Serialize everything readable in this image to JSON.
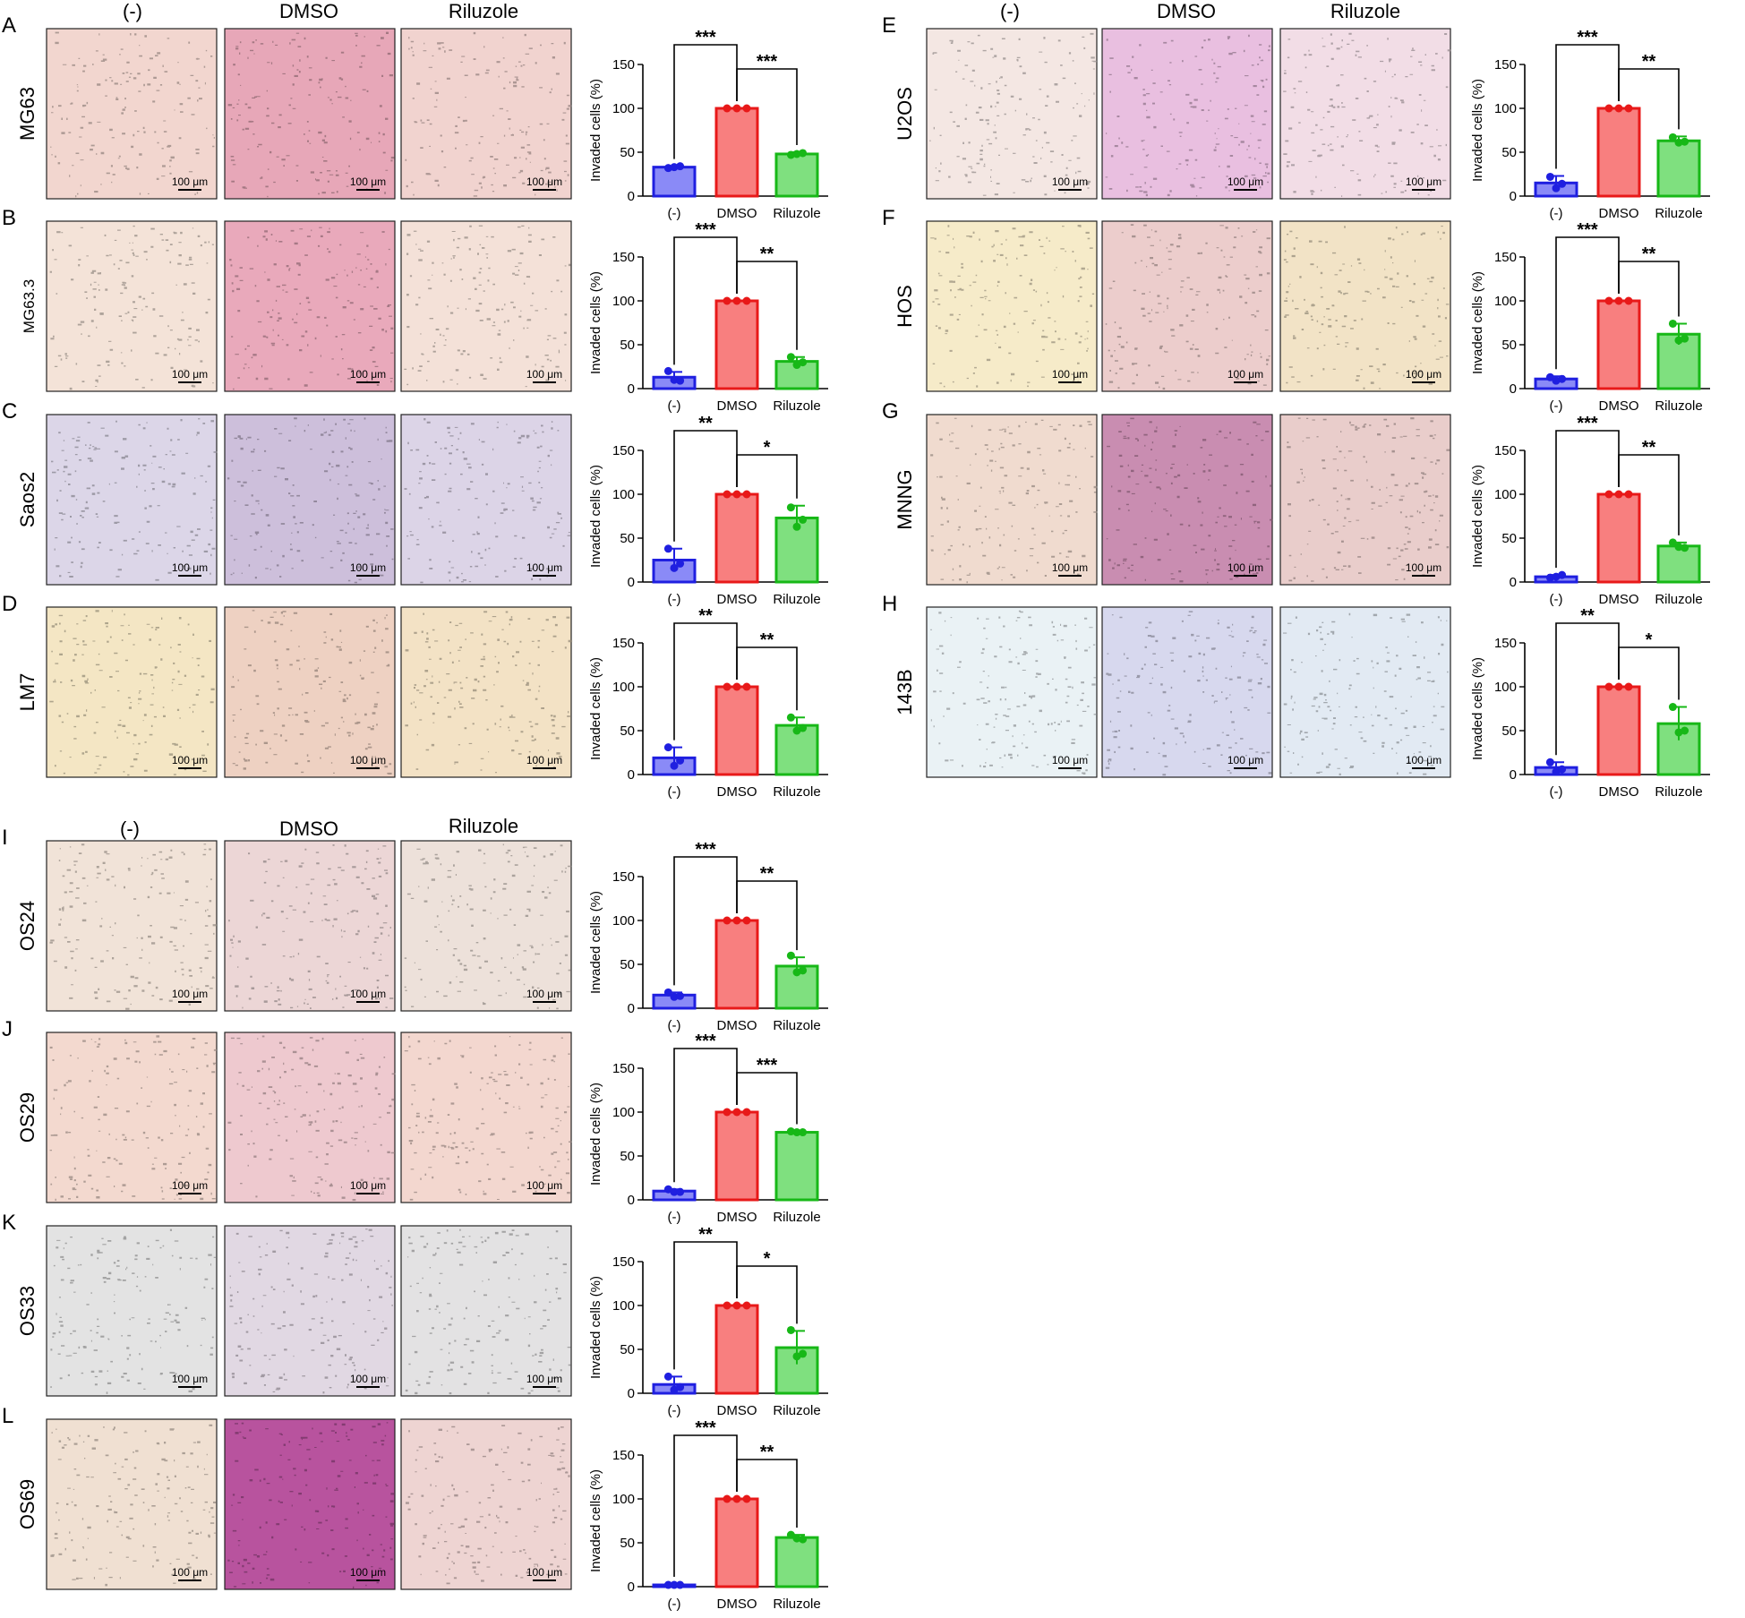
{
  "colors": {
    "neg_fill": "#8a8af7",
    "neg_stroke": "#1f1fe0",
    "dmso_fill": "#f87f7f",
    "dmso_stroke": "#e81919",
    "ril_fill": "#7fe07f",
    "ril_stroke": "#17b817",
    "axis": "#000000"
  },
  "column_headers": {
    "neg": "(-)",
    "dmso": "DMSO",
    "riluzole": "Riluzole"
  },
  "scale_bar_label": "100 μm",
  "micrograph_tints": {
    "A": [
      "#f2d6cf",
      "#e7a7b8",
      "#f1d3cf"
    ],
    "B": [
      "#f4e3d8",
      "#e9a9bb",
      "#f4e1d8"
    ],
    "C": [
      "#dcd6e8",
      "#cdbfdb",
      "#dcd4e7"
    ],
    "D": [
      "#f4e6c4",
      "#eed1c2",
      "#f3e2c5"
    ],
    "E": [
      "#f4e7e3",
      "#e9bfe0",
      "#f2dde6"
    ],
    "F": [
      "#f6ebc9",
      "#eccdcc",
      "#f2e3c6"
    ],
    "G": [
      "#f0dbcf",
      "#c98db1",
      "#e9cdcb"
    ],
    "H": [
      "#eaf2f5",
      "#d7d8ee",
      "#e2eaf3"
    ],
    "I": [
      "#f1e3d8",
      "#ecd6d6",
      "#ede1da"
    ],
    "J": [
      "#f3d9cf",
      "#eec9cf",
      "#f3d7cf"
    ],
    "K": [
      "#e3e3e3",
      "#e1d8e3",
      "#e3e2e3"
    ],
    "L": [
      "#f0e0d2",
      "#b8539e",
      "#eed4d2"
    ]
  },
  "chart_data": [
    {
      "panel": "A",
      "cell_line": "MG63",
      "type": "bar",
      "categories": [
        "(-)",
        "DMSO",
        "Riluzole"
      ],
      "ylabel": "Invaded cells (%)",
      "ylim": [
        0,
        150
      ],
      "yticks": [
        0,
        50,
        100,
        150
      ],
      "values": [
        33,
        100,
        48
      ],
      "errors": [
        1,
        0,
        2
      ],
      "points": [
        [
          32,
          33,
          34
        ],
        [
          100,
          100,
          100
        ],
        [
          47,
          48,
          49
        ]
      ],
      "significance": [
        {
          "pair": "(-)-DMSO",
          "label": "***"
        },
        {
          "pair": "DMSO-Riluzole",
          "label": "***"
        }
      ]
    },
    {
      "panel": "B",
      "cell_line": "MG63.3",
      "type": "bar",
      "categories": [
        "(-)",
        "DMSO",
        "Riluzole"
      ],
      "ylabel": "Invaded cells (%)",
      "ylim": [
        0,
        150
      ],
      "yticks": [
        0,
        50,
        100,
        150
      ],
      "values": [
        13,
        100,
        31
      ],
      "errors": [
        6,
        0,
        5
      ],
      "points": [
        [
          20,
          10,
          9
        ],
        [
          100,
          100,
          100
        ],
        [
          36,
          27,
          30
        ]
      ],
      "significance": [
        {
          "pair": "(-)-DMSO",
          "label": "***"
        },
        {
          "pair": "DMSO-Riluzole",
          "label": "**"
        }
      ]
    },
    {
      "panel": "C",
      "cell_line": "Saos2",
      "type": "bar",
      "categories": [
        "(-)",
        "DMSO",
        "Riluzole"
      ],
      "ylabel": "Invaded cells (%)",
      "ylim": [
        0,
        150
      ],
      "yticks": [
        0,
        50,
        100,
        150
      ],
      "values": [
        25,
        100,
        73
      ],
      "errors": [
        13,
        0,
        14
      ],
      "points": [
        [
          38,
          16,
          21
        ],
        [
          100,
          100,
          100
        ],
        [
          85,
          63,
          71
        ]
      ],
      "significance": [
        {
          "pair": "(-)-DMSO",
          "label": "**"
        },
        {
          "pair": "DMSO-Riluzole",
          "label": "*"
        }
      ]
    },
    {
      "panel": "D",
      "cell_line": "LM7",
      "type": "bar",
      "categories": [
        "(-)",
        "DMSO",
        "Riluzole"
      ],
      "ylabel": "Invaded cells (%)",
      "ylim": [
        0,
        150
      ],
      "yticks": [
        0,
        50,
        100,
        150
      ],
      "values": [
        19,
        100,
        56
      ],
      "errors": [
        12,
        0,
        9
      ],
      "points": [
        [
          31,
          10,
          16
        ],
        [
          100,
          100,
          100
        ],
        [
          65,
          50,
          53
        ]
      ],
      "significance": [
        {
          "pair": "(-)-DMSO",
          "label": "**"
        },
        {
          "pair": "DMSO-Riluzole",
          "label": "**"
        }
      ]
    },
    {
      "panel": "E",
      "cell_line": "U2OS",
      "type": "bar",
      "categories": [
        "(-)",
        "DMSO",
        "Riluzole"
      ],
      "ylabel": "Invaded cells (%)",
      "ylim": [
        0,
        150
      ],
      "yticks": [
        0,
        50,
        100,
        150
      ],
      "values": [
        15,
        100,
        63
      ],
      "errors": [
        8,
        0,
        5
      ],
      "points": [
        [
          22,
          9,
          14
        ],
        [
          100,
          100,
          100
        ],
        [
          67,
          61,
          62
        ]
      ],
      "significance": [
        {
          "pair": "(-)-DMSO",
          "label": "***"
        },
        {
          "pair": "DMSO-Riluzole",
          "label": "**"
        }
      ]
    },
    {
      "panel": "F",
      "cell_line": "HOS",
      "type": "bar",
      "categories": [
        "(-)",
        "DMSO",
        "Riluzole"
      ],
      "ylabel": "Invaded cells (%)",
      "ylim": [
        0,
        150
      ],
      "yticks": [
        0,
        50,
        100,
        150
      ],
      "values": [
        11,
        100,
        62
      ],
      "errors": [
        3,
        0,
        12
      ],
      "points": [
        [
          13,
          9,
          11
        ],
        [
          100,
          100,
          100
        ],
        [
          74,
          55,
          57
        ]
      ],
      "significance": [
        {
          "pair": "(-)-DMSO",
          "label": "***"
        },
        {
          "pair": "DMSO-Riluzole",
          "label": "**"
        }
      ]
    },
    {
      "panel": "G",
      "cell_line": "MNNG",
      "type": "bar",
      "categories": [
        "(-)",
        "DMSO",
        "Riluzole"
      ],
      "ylabel": "Invaded cells (%)",
      "ylim": [
        0,
        150
      ],
      "yticks": [
        0,
        50,
        100,
        150
      ],
      "values": [
        6,
        100,
        41
      ],
      "errors": [
        2,
        0,
        4
      ],
      "points": [
        [
          5,
          6,
          8
        ],
        [
          100,
          100,
          100
        ],
        [
          45,
          40,
          39
        ]
      ],
      "significance": [
        {
          "pair": "(-)-DMSO",
          "label": "***"
        },
        {
          "pair": "DMSO-Riluzole",
          "label": "**"
        }
      ]
    },
    {
      "panel": "H",
      "cell_line": "143B",
      "type": "bar",
      "categories": [
        "(-)",
        "DMSO",
        "Riluzole"
      ],
      "ylabel": "Invaded cells (%)",
      "ylim": [
        0,
        150
      ],
      "yticks": [
        0,
        50,
        100,
        150
      ],
      "values": [
        8,
        100,
        58
      ],
      "errors": [
        6,
        0,
        19
      ],
      "points": [
        [
          14,
          3,
          6
        ],
        [
          100,
          100,
          100
        ],
        [
          77,
          48,
          50
        ]
      ],
      "significance": [
        {
          "pair": "(-)-DMSO",
          "label": "**"
        },
        {
          "pair": "DMSO-Riluzole",
          "label": "*"
        }
      ]
    },
    {
      "panel": "I",
      "cell_line": "OS24",
      "type": "bar",
      "categories": [
        "(-)",
        "DMSO",
        "Riluzole"
      ],
      "ylabel": "Invaded cells (%)",
      "ylim": [
        0,
        150
      ],
      "yticks": [
        0,
        50,
        100,
        150
      ],
      "values": [
        15,
        100,
        48
      ],
      "errors": [
        3,
        0,
        10
      ],
      "points": [
        [
          18,
          13,
          14
        ],
        [
          100,
          100,
          100
        ],
        [
          60,
          41,
          43
        ]
      ],
      "significance": [
        {
          "pair": "(-)-DMSO",
          "label": "***"
        },
        {
          "pair": "DMSO-Riluzole",
          "label": "**"
        }
      ]
    },
    {
      "panel": "J",
      "cell_line": "OS29",
      "type": "bar",
      "categories": [
        "(-)",
        "DMSO",
        "Riluzole"
      ],
      "ylabel": "Invaded cells (%)",
      "ylim": [
        0,
        150
      ],
      "yticks": [
        0,
        50,
        100,
        150
      ],
      "values": [
        10,
        100,
        77
      ],
      "errors": [
        2,
        0,
        1
      ],
      "points": [
        [
          12,
          9,
          9
        ],
        [
          100,
          100,
          100
        ],
        [
          78,
          77,
          77
        ]
      ],
      "significance": [
        {
          "pair": "(-)-DMSO",
          "label": "***"
        },
        {
          "pair": "DMSO-Riluzole",
          "label": "***"
        }
      ]
    },
    {
      "panel": "K",
      "cell_line": "OS33",
      "type": "bar",
      "categories": [
        "(-)",
        "DMSO",
        "Riluzole"
      ],
      "ylabel": "Invaded cells (%)",
      "ylim": [
        0,
        150
      ],
      "yticks": [
        0,
        50,
        100,
        150
      ],
      "values": [
        10,
        100,
        52
      ],
      "errors": [
        9,
        0,
        19
      ],
      "points": [
        [
          19,
          4,
          7
        ],
        [
          100,
          100,
          100
        ],
        [
          72,
          42,
          45
        ]
      ],
      "significance": [
        {
          "pair": "(-)-DMSO",
          "label": "**"
        },
        {
          "pair": "DMSO-Riluzole",
          "label": "*"
        }
      ]
    },
    {
      "panel": "L",
      "cell_line": "OS69",
      "type": "bar",
      "categories": [
        "(-)",
        "DMSO",
        "Riluzole"
      ],
      "ylabel": "Invaded cells (%)",
      "ylim": [
        0,
        150
      ],
      "yticks": [
        0,
        50,
        100,
        150
      ],
      "values": [
        2,
        100,
        56
      ],
      "errors": [
        1,
        0,
        3
      ],
      "points": [
        [
          2,
          2,
          2
        ],
        [
          100,
          100,
          100
        ],
        [
          59,
          55,
          54
        ]
      ],
      "significance": [
        {
          "pair": "(-)-DMSO",
          "label": "***"
        },
        {
          "pair": "DMSO-Riluzole",
          "label": "**"
        }
      ]
    }
  ]
}
